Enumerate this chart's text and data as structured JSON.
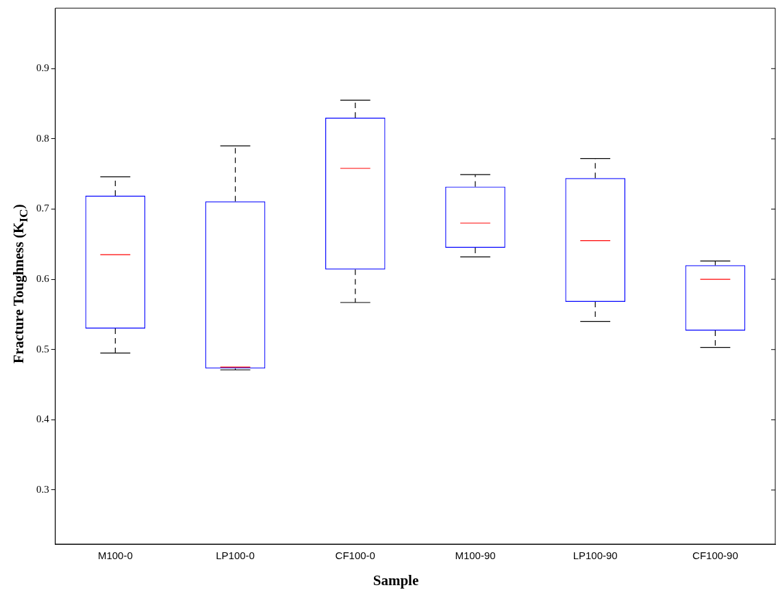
{
  "chart_data": {
    "type": "box",
    "xlabel": "Sample",
    "ylabel": "Fracture Toughness (K$_{IC}$)",
    "categories": [
      "M100-0",
      "LP100-0",
      "CF100-0",
      "M100-90",
      "LP100-90",
      "CF100-90"
    ],
    "color": "#0000ff",
    "boxes": [
      {
        "low": 0.495,
        "q1": 0.53,
        "median": 0.635,
        "q3": 0.719,
        "high": 0.746
      },
      {
        "low": 0.471,
        "q1": 0.473,
        "median": 0.475,
        "q3": 0.711,
        "high": 0.79
      },
      {
        "low": 0.567,
        "q1": 0.614,
        "median": 0.758,
        "q3": 0.83,
        "high": 0.855
      },
      {
        "low": 0.632,
        "q1": 0.645,
        "median": 0.68,
        "q3": 0.732,
        "high": 0.749
      },
      {
        "low": 0.54,
        "q1": 0.568,
        "median": 0.655,
        "q3": 0.744,
        "high": 0.772
      },
      {
        "low": 0.503,
        "q1": 0.527,
        "median": 0.6,
        "q3": 0.62,
        "high": 0.626
      }
    ],
    "ylim": [
      0.223,
      0.986
    ],
    "yticks": [
      0.3,
      0.4,
      0.5,
      0.6,
      0.7,
      0.8,
      0.9
    ],
    "grid": false,
    "legend": false
  }
}
